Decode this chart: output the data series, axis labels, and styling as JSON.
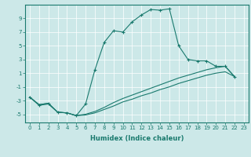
{
  "xlabel": "Humidex (Indice chaleur)",
  "background_color": "#cce8e8",
  "grid_color": "#ffffff",
  "line_color": "#1a7a6e",
  "xlim": [
    -0.5,
    23.5
  ],
  "ylim": [
    -6.2,
    11.0
  ],
  "xticks": [
    0,
    1,
    2,
    3,
    4,
    5,
    6,
    7,
    8,
    9,
    10,
    11,
    12,
    13,
    14,
    15,
    16,
    17,
    18,
    19,
    20,
    21,
    22,
    23
  ],
  "yticks": [
    -5,
    -3,
    -1,
    1,
    3,
    5,
    7,
    9
  ],
  "line1_x": [
    0,
    1,
    2,
    3,
    4,
    5,
    6,
    7,
    8,
    9,
    10,
    11,
    12,
    13,
    14,
    15,
    16,
    17,
    18,
    19,
    20,
    21,
    22
  ],
  "line1_y": [
    -2.5,
    -3.7,
    -3.5,
    -4.7,
    -4.8,
    -5.2,
    -3.5,
    1.5,
    5.5,
    7.2,
    7.0,
    8.5,
    9.5,
    10.3,
    10.2,
    10.4,
    5.0,
    3.0,
    2.8,
    2.8,
    2.0,
    2.0,
    0.5
  ],
  "line2_x": [
    0,
    1,
    2,
    3,
    4,
    5,
    6,
    7,
    8,
    9,
    10,
    11,
    12,
    13,
    14,
    15,
    16,
    17,
    18,
    19,
    20,
    21,
    22
  ],
  "line2_y": [
    -2.5,
    -3.6,
    -3.4,
    -4.7,
    -4.8,
    -5.2,
    -5.0,
    -4.6,
    -4.0,
    -3.3,
    -2.7,
    -2.2,
    -1.7,
    -1.2,
    -0.7,
    -0.2,
    0.3,
    0.7,
    1.1,
    1.5,
    1.8,
    2.0,
    0.5
  ],
  "line3_x": [
    0,
    1,
    2,
    3,
    4,
    5,
    6,
    7,
    8,
    9,
    10,
    11,
    12,
    13,
    14,
    15,
    16,
    17,
    18,
    19,
    20,
    21,
    22
  ],
  "line3_y": [
    -2.5,
    -3.6,
    -3.4,
    -4.7,
    -4.8,
    -5.2,
    -5.1,
    -4.8,
    -4.3,
    -3.8,
    -3.2,
    -2.8,
    -2.3,
    -1.9,
    -1.4,
    -1.0,
    -0.5,
    -0.1,
    0.3,
    0.7,
    1.0,
    1.2,
    0.5
  ]
}
